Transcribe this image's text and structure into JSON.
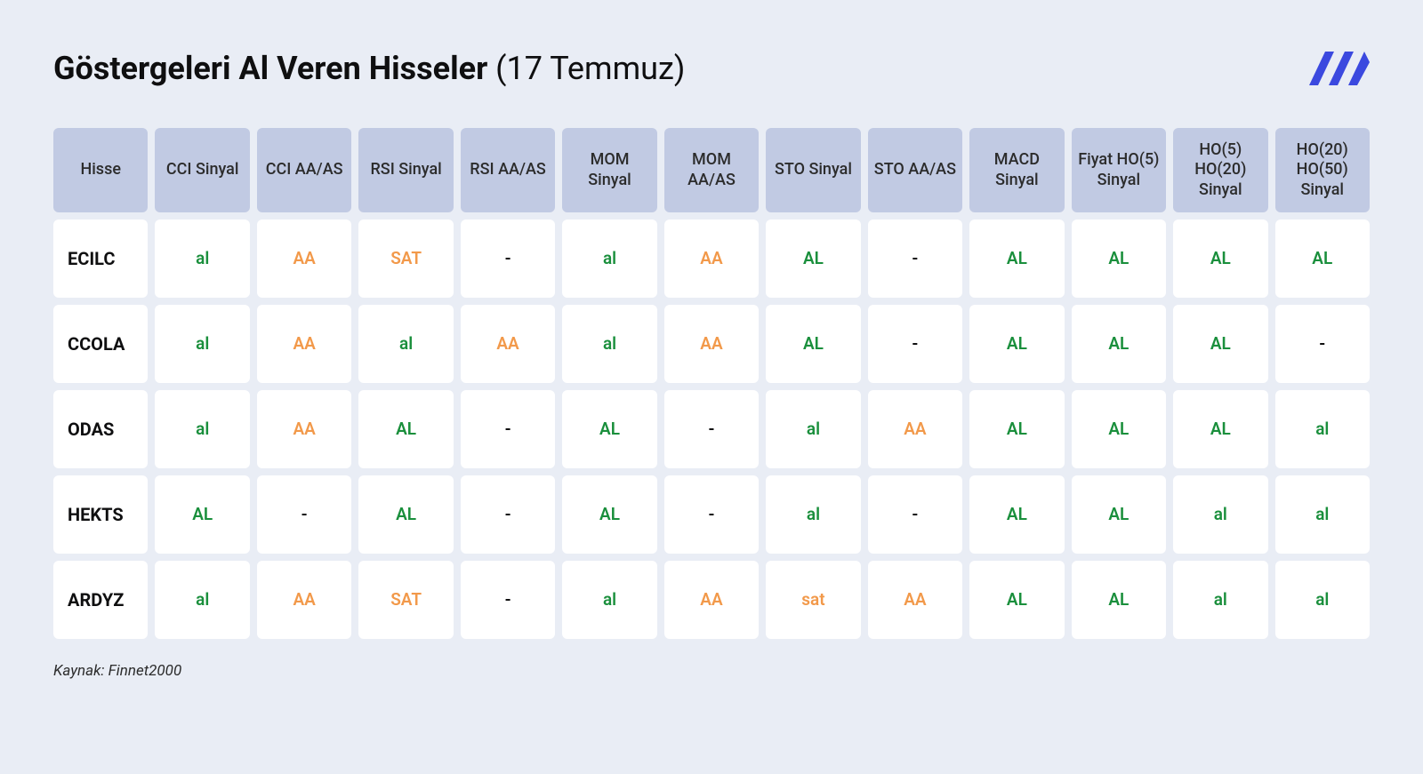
{
  "title_bold": "Göstergeleri Al Veren Hisseler",
  "title_rest": " (17 Temmuz)",
  "source": "Kaynak: Finnet2000",
  "colors": {
    "background": "#e9edf5",
    "header_cell": "#c1cae3",
    "body_cell": "#ffffff",
    "text_dark": "#0f0f10",
    "green": "#1a8f3c",
    "orange": "#f2994a",
    "logo": "#3b49df"
  },
  "columns": [
    "Hisse",
    "CCI Sinyal",
    "CCI AA/AS",
    "RSI Sinyal",
    "RSI AA/AS",
    "MOM Sinyal",
    "MOM AA/AS",
    "STO Sinyal",
    "STO AA/AS",
    "MACD Sinyal",
    "Fiyat HO(5) Sinyal",
    "HO(5) HO(20) Sinyal",
    "HO(20) HO(50) Sinyal"
  ],
  "rows": [
    {
      "stock": "ECILC",
      "cells": [
        {
          "v": "al",
          "c": "green"
        },
        {
          "v": "AA",
          "c": "orange"
        },
        {
          "v": "SAT",
          "c": "orange"
        },
        {
          "v": "-",
          "c": "dark"
        },
        {
          "v": "al",
          "c": "green"
        },
        {
          "v": "AA",
          "c": "orange"
        },
        {
          "v": "AL",
          "c": "green"
        },
        {
          "v": "-",
          "c": "dark"
        },
        {
          "v": "AL",
          "c": "green"
        },
        {
          "v": "AL",
          "c": "green"
        },
        {
          "v": "AL",
          "c": "green"
        },
        {
          "v": "AL",
          "c": "green"
        }
      ]
    },
    {
      "stock": "CCOLA",
      "cells": [
        {
          "v": "al",
          "c": "green"
        },
        {
          "v": "AA",
          "c": "orange"
        },
        {
          "v": "al",
          "c": "green"
        },
        {
          "v": "AA",
          "c": "orange"
        },
        {
          "v": "al",
          "c": "green"
        },
        {
          "v": "AA",
          "c": "orange"
        },
        {
          "v": "AL",
          "c": "green"
        },
        {
          "v": "-",
          "c": "dark"
        },
        {
          "v": "AL",
          "c": "green"
        },
        {
          "v": "AL",
          "c": "green"
        },
        {
          "v": "AL",
          "c": "green"
        },
        {
          "v": "-",
          "c": "dark"
        }
      ]
    },
    {
      "stock": "ODAS",
      "cells": [
        {
          "v": "al",
          "c": "green"
        },
        {
          "v": "AA",
          "c": "orange"
        },
        {
          "v": "AL",
          "c": "green"
        },
        {
          "v": "-",
          "c": "dark"
        },
        {
          "v": "AL",
          "c": "green"
        },
        {
          "v": "-",
          "c": "dark"
        },
        {
          "v": "al",
          "c": "green"
        },
        {
          "v": "AA",
          "c": "orange"
        },
        {
          "v": "AL",
          "c": "green"
        },
        {
          "v": "AL",
          "c": "green"
        },
        {
          "v": "AL",
          "c": "green"
        },
        {
          "v": "al",
          "c": "green"
        }
      ]
    },
    {
      "stock": "HEKTS",
      "cells": [
        {
          "v": "AL",
          "c": "green"
        },
        {
          "v": "-",
          "c": "dark"
        },
        {
          "v": "AL",
          "c": "green"
        },
        {
          "v": "-",
          "c": "dark"
        },
        {
          "v": "AL",
          "c": "green"
        },
        {
          "v": "-",
          "c": "dark"
        },
        {
          "v": "al",
          "c": "green"
        },
        {
          "v": "-",
          "c": "dark"
        },
        {
          "v": "AL",
          "c": "green"
        },
        {
          "v": "AL",
          "c": "green"
        },
        {
          "v": "al",
          "c": "green"
        },
        {
          "v": "al",
          "c": "green"
        }
      ]
    },
    {
      "stock": "ARDYZ",
      "cells": [
        {
          "v": "al",
          "c": "green"
        },
        {
          "v": "AA",
          "c": "orange"
        },
        {
          "v": "SAT",
          "c": "orange"
        },
        {
          "v": "-",
          "c": "dark"
        },
        {
          "v": "al",
          "c": "green"
        },
        {
          "v": "AA",
          "c": "orange"
        },
        {
          "v": "sat",
          "c": "orange"
        },
        {
          "v": "AA",
          "c": "orange"
        },
        {
          "v": "AL",
          "c": "green"
        },
        {
          "v": "AL",
          "c": "green"
        },
        {
          "v": "al",
          "c": "green"
        },
        {
          "v": "al",
          "c": "green"
        }
      ]
    }
  ]
}
